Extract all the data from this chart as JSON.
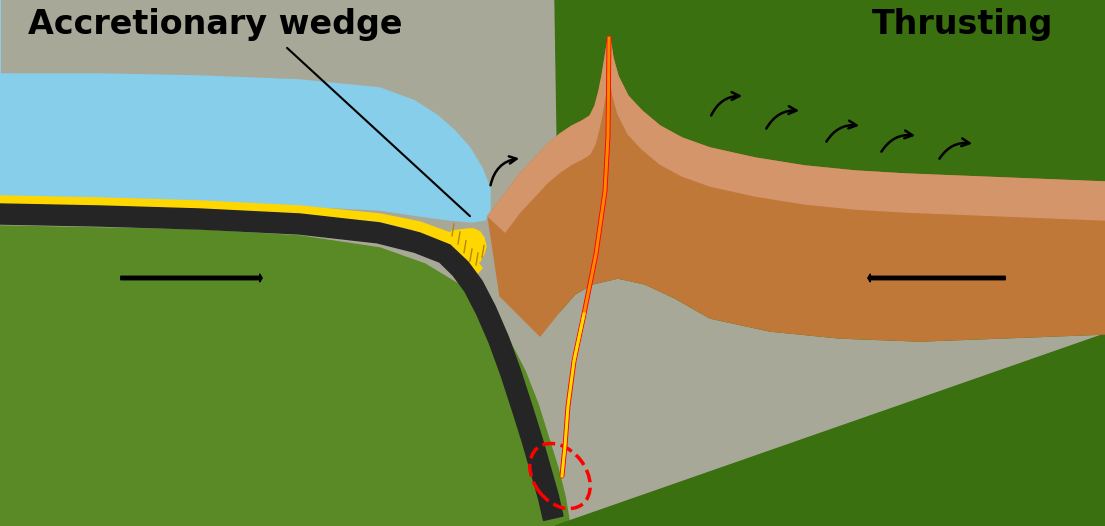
{
  "label_accretionary": "Accretionary wedge",
  "label_thrusting": "Thrusting",
  "figsize": [
    11.05,
    5.26
  ],
  "dpi": 100,
  "colors": {
    "white": "#ffffff",
    "ocean_blue": "#87CEEB",
    "yellow_gold": "#FFD700",
    "dark_crust": "#252525",
    "green_oceanic": "#5a8a25",
    "green_continental": "#3a7010",
    "green_surface": "#4a8818",
    "orange_dark": "#C07838",
    "orange_light": "#D4956B",
    "orange_volcano": "#E8A860",
    "gray_mantle": "#A8A898",
    "red": "#DD0000",
    "orange_line": "#FF8800",
    "yellow_line": "#FFDD00"
  }
}
